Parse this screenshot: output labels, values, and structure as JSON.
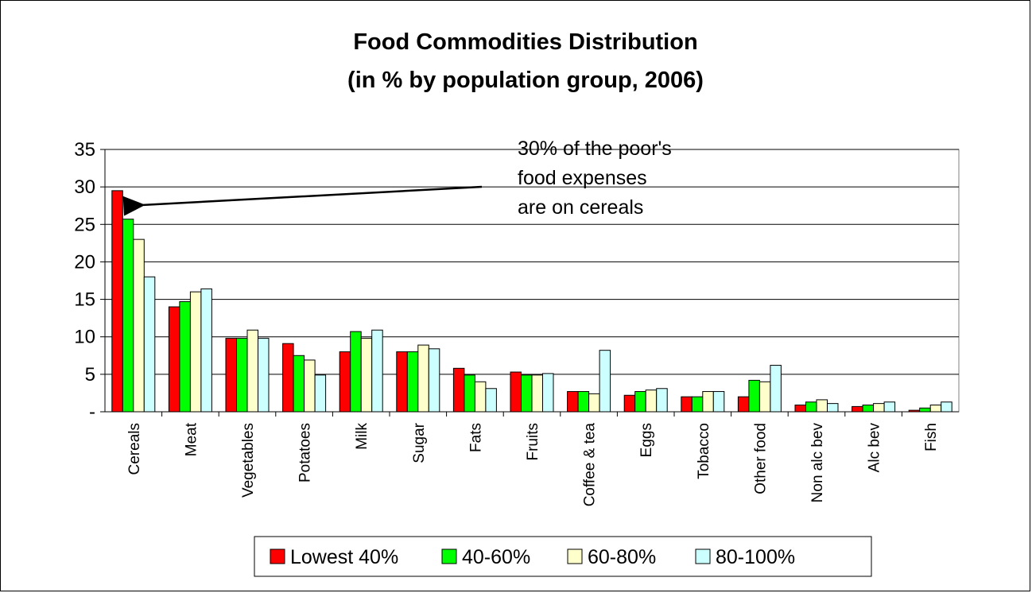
{
  "chart_data": {
    "type": "bar",
    "title": "Food Commodities Distribution",
    "subtitle": "(in % by population group, 2006)",
    "xlabel": "",
    "ylabel": "",
    "ylim": [
      0,
      35
    ],
    "yticks": [
      {
        "value": 0,
        "label": "-"
      },
      {
        "value": 5,
        "label": "5"
      },
      {
        "value": 10,
        "label": "10"
      },
      {
        "value": 15,
        "label": "15"
      },
      {
        "value": 20,
        "label": "20"
      },
      {
        "value": 25,
        "label": "25"
      },
      {
        "value": 30,
        "label": "30"
      },
      {
        "value": 35,
        "label": "35"
      }
    ],
    "grid": true,
    "legend_position": "bottom",
    "categories": [
      "Cereals",
      "Meat",
      "Vegetables",
      "Potatoes",
      "Milk",
      "Sugar",
      "Fats",
      "Fruits",
      "Coffee & tea",
      "Eggs",
      "Tobacco",
      "Other food",
      "Non alc bev",
      "Alc bev",
      "Fish"
    ],
    "series": [
      {
        "name": "Lowest 40%",
        "color": "#ff0000",
        "values": [
          29.5,
          14.0,
          9.8,
          9.1,
          8.0,
          8.0,
          5.8,
          5.3,
          2.7,
          2.2,
          2.0,
          2.0,
          0.9,
          0.7,
          0.2
        ]
      },
      {
        "name": "40-60%",
        "color": "#00ff00",
        "values": [
          25.7,
          14.7,
          9.8,
          7.5,
          10.7,
          8.0,
          4.9,
          4.9,
          2.7,
          2.7,
          2.0,
          4.2,
          1.3,
          0.9,
          0.5
        ]
      },
      {
        "name": "60-80%",
        "color": "#ffffcc",
        "values": [
          23.0,
          16.0,
          10.9,
          6.9,
          9.8,
          8.9,
          4.0,
          4.9,
          2.4,
          2.9,
          2.7,
          4.0,
          1.6,
          1.1,
          0.9
        ]
      },
      {
        "name": "80-100%",
        "color": "#ccffff",
        "values": [
          18.0,
          16.4,
          9.8,
          4.9,
          10.9,
          8.4,
          3.1,
          5.1,
          8.2,
          3.1,
          2.7,
          6.2,
          1.1,
          1.3,
          1.3
        ]
      }
    ],
    "annotation": {
      "lines": [
        "30% of the poor's",
        "food expenses",
        "are on cereals"
      ],
      "points_to": "Cereals"
    }
  }
}
